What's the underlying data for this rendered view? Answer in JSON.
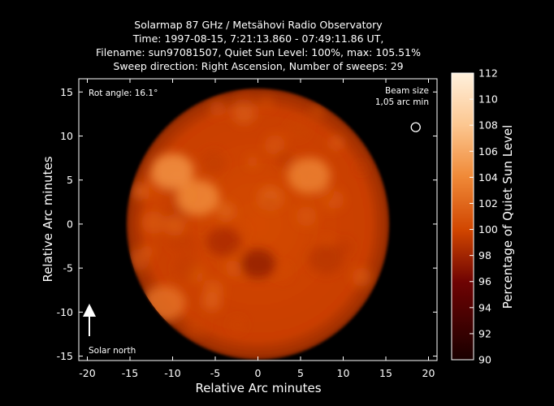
{
  "chart_data": {
    "type": "heatmap",
    "title_lines": [
      "Solarmap 87 GHz / Metsähovi Radio Observatory",
      "Time: 1997-08-15,  7:21:13.860 - 07:49:11.86 UT,",
      "Filename: sun97081507, Quiet Sun Level: 100%, max: 105.51%",
      "Sweep direction: Right Ascension, Number of sweeps: 29"
    ],
    "xlabel": "Relative Arc minutes",
    "ylabel": "Relative Arc minutes",
    "xlim": [
      -21,
      21
    ],
    "ylim": [
      -15.5,
      16.5
    ],
    "xticks": [
      -20,
      -15,
      -10,
      -5,
      0,
      5,
      10,
      15,
      20
    ],
    "yticks": [
      -15,
      -10,
      -5,
      0,
      5,
      10,
      15
    ],
    "colorbar": {
      "label": "Percentage of Quiet Sun Level",
      "range": [
        90,
        112
      ],
      "ticks": [
        90,
        92,
        94,
        96,
        98,
        100,
        102,
        104,
        106,
        108,
        110,
        112
      ]
    },
    "disk": {
      "center": [
        0,
        0
      ],
      "radius": 15.4,
      "quiet_level": 100,
      "max": 105.51
    },
    "annotations": {
      "rot_angle": "Rot angle: 16.1°",
      "beam_size_line1": "Beam size",
      "beam_size_line2": "1,05 arc min",
      "solar_north": "Solar north"
    },
    "beam": {
      "x": 18.5,
      "y": 11,
      "diameter_arcmin": 1.05
    },
    "features": [
      {
        "kind": "bright",
        "x": -10,
        "y": 6,
        "value": 104.5
      },
      {
        "kind": "bright",
        "x": -7,
        "y": 3,
        "value": 104
      },
      {
        "kind": "bright",
        "x": 6,
        "y": 5.5,
        "value": 103.5
      },
      {
        "kind": "bright",
        "x": -11,
        "y": -9,
        "value": 102.5
      },
      {
        "kind": "dark",
        "x": 0,
        "y": -4.5,
        "value": 97.5
      },
      {
        "kind": "dark",
        "x": -4,
        "y": -2,
        "value": 98.5
      },
      {
        "kind": "dark",
        "x": 8,
        "y": -4,
        "value": 99
      }
    ],
    "colors": {
      "c90": "#1a0000",
      "c96": "#6e0303",
      "c100": "#d04500",
      "c104": "#f08a38",
      "c108": "#fcc791",
      "c112": "#fff0dc"
    }
  }
}
